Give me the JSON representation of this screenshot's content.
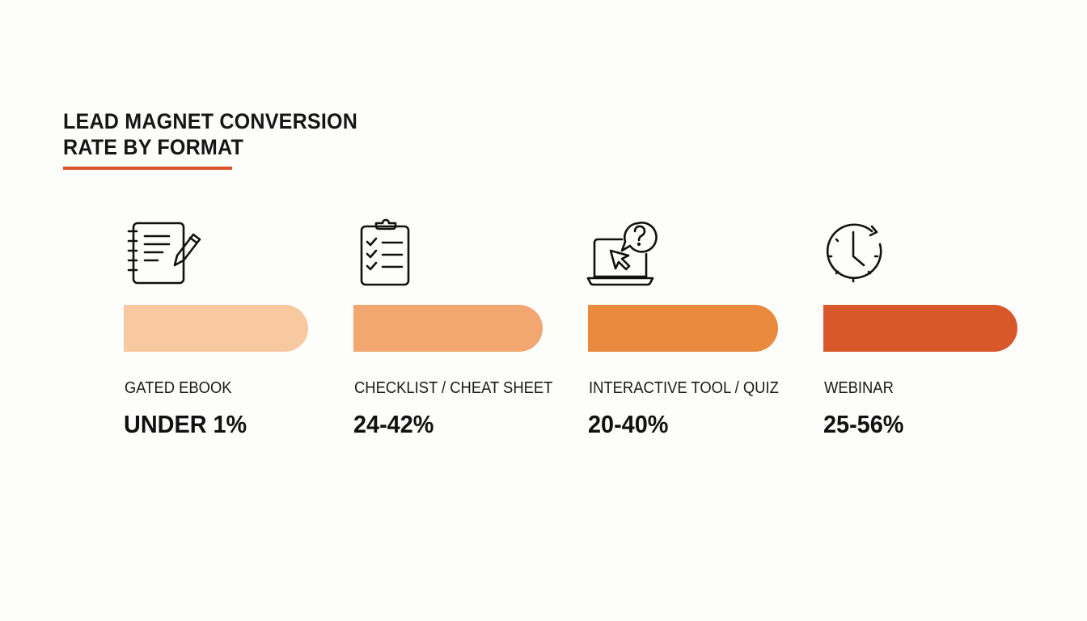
{
  "chart_data": {
    "type": "bar",
    "title": "LEAD MAGNET CONVERSION RATE BY FORMAT",
    "title_lines": [
      "LEAD MAGNET CONVERSION",
      "RATE BY FORMAT"
    ],
    "categories": [
      {
        "label": "GATED EBOOK",
        "value_text": "UNDER 1%",
        "value_range": [
          0,
          1
        ],
        "icon": "notebook-pen-icon",
        "color": "#f8c9a0"
      },
      {
        "label": "CHECKLIST / CHEAT SHEET",
        "value_text": "24-42%",
        "value_range": [
          24,
          42
        ],
        "icon": "clipboard-checklist-icon",
        "color": "#f2a670"
      },
      {
        "label": "INTERACTIVE TOOL / QUIZ",
        "value_text": "20-40%",
        "value_range": [
          20,
          40
        ],
        "icon": "laptop-cursor-question-icon",
        "color": "#ea8a3e"
      },
      {
        "label": "WEBINAR",
        "value_text": "25-56%",
        "value_range": [
          25,
          56
        ],
        "icon": "clock-icon",
        "color": "#d9582a"
      }
    ],
    "accent_color": "#d9562a",
    "grid": false,
    "legend": "none"
  }
}
